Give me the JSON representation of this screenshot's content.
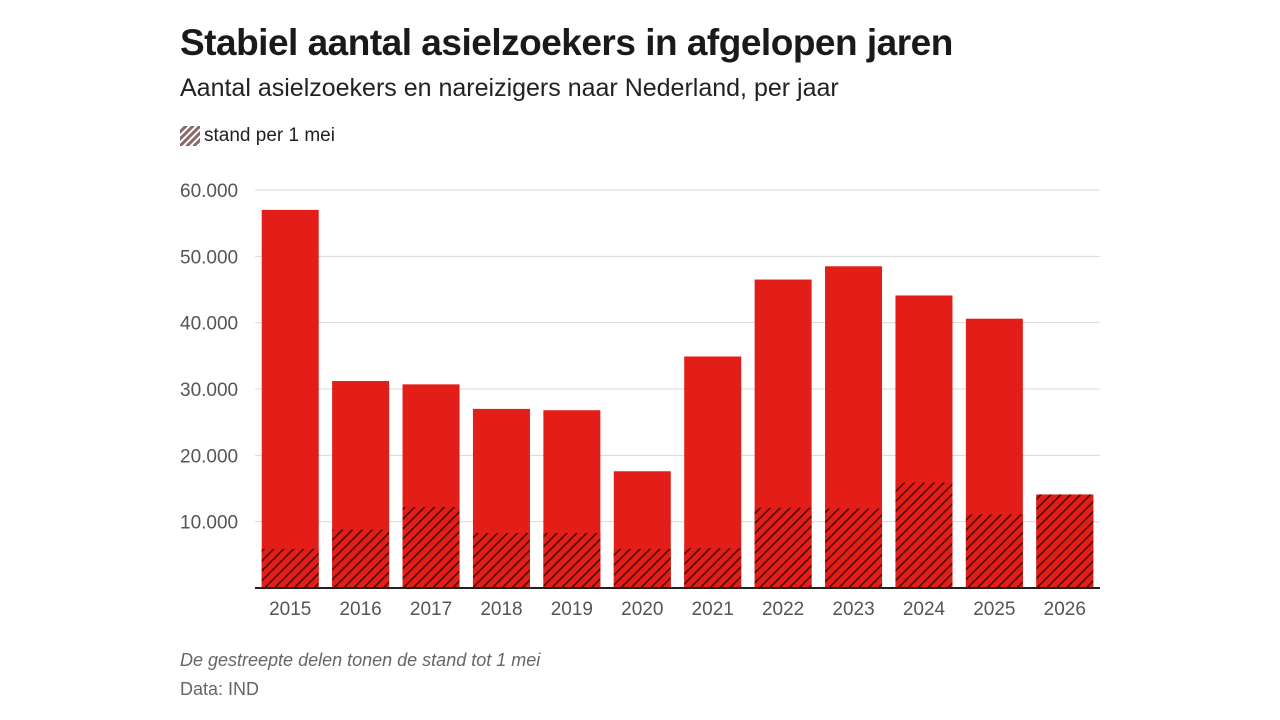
{
  "colors": {
    "bar": "#e31d17",
    "hatch_line": "#4a0c08",
    "grid": "#d9d9d9",
    "axis": "#222222",
    "legend_swatch": "#8a6a6a"
  },
  "legend": {
    "label": "stand per 1 mei",
    "icon": "diagonal-stripes-icon"
  },
  "footer": {
    "note": "De gestreepte delen tonen de stand tot 1 mei",
    "source": "Data: IND"
  },
  "chart_data": {
    "type": "bar",
    "title": "Stabiel aantal asielzoekers in afgelopen jaren",
    "subtitle": "Aantal asielzoekers en nareizigers naar Nederland, per jaar",
    "xlabel": "",
    "ylabel": "",
    "ylim": [
      0,
      60000
    ],
    "yticks": [
      10000,
      20000,
      30000,
      40000,
      50000,
      60000
    ],
    "ytick_labels": [
      "10.000",
      "20.000",
      "30.000",
      "40.000",
      "50.000",
      "60.000"
    ],
    "grid": true,
    "legend_position": "top-left",
    "categories": [
      "2015",
      "2016",
      "2017",
      "2018",
      "2019",
      "2020",
      "2021",
      "2022",
      "2023",
      "2024",
      "2025",
      "2026"
    ],
    "series": [
      {
        "name": "",
        "values": [
          57000,
          31200,
          30700,
          27000,
          26800,
          17600,
          34900,
          46500,
          48500,
          44100,
          40600,
          14100
        ]
      },
      {
        "name": "stand per 1 mei",
        "pattern": "hatched",
        "values": [
          5900,
          8800,
          12200,
          8300,
          8300,
          5900,
          6000,
          12100,
          12000,
          15900,
          11100,
          14100
        ]
      }
    ]
  }
}
